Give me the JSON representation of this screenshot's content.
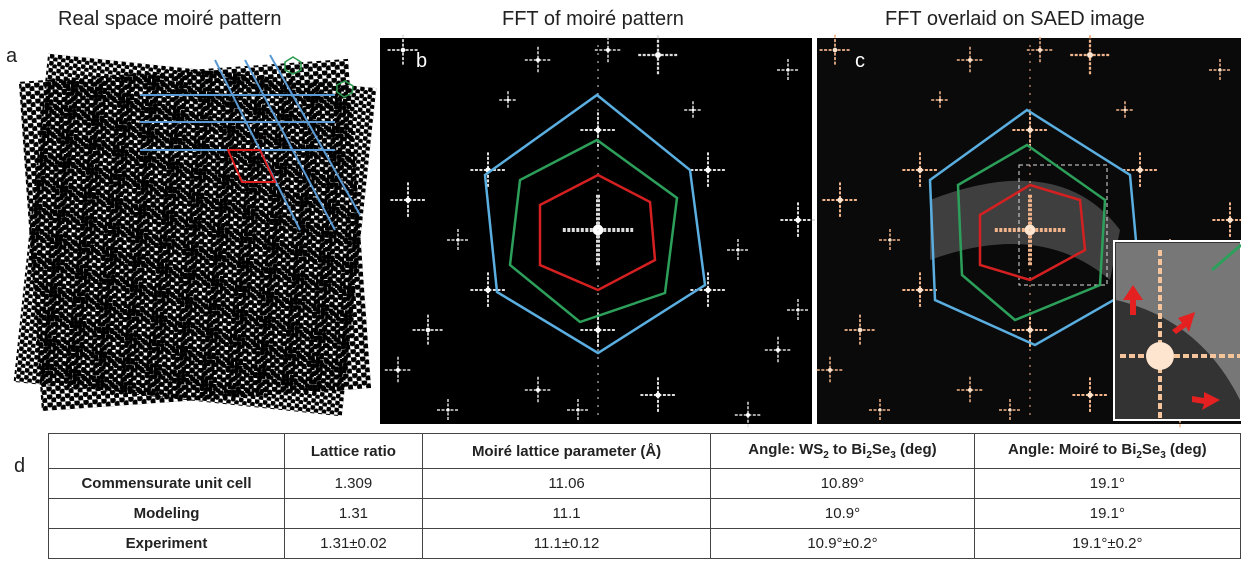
{
  "panels": {
    "a": {
      "title": "Real space moiré pattern",
      "label": "a"
    },
    "b": {
      "title": "FFT of moiré pattern",
      "label": "b"
    },
    "c": {
      "title": "FFT overlaid on SAED image",
      "label": "c"
    },
    "d": {
      "label": "d"
    }
  },
  "table": {
    "header": [
      [
        ""
      ],
      [
        "Lattice ratio"
      ],
      [
        "Moiré lattice parameter (Å)"
      ],
      [
        "Angle: WS",
        "2",
        " to Bi",
        "2",
        "Se",
        "3",
        " (deg)"
      ],
      [
        "Angle: Moiré to Bi",
        "2",
        "Se",
        "3",
        " (deg)"
      ]
    ],
    "rows": [
      [
        "Commensurate unit cell",
        "1.309",
        "11.06",
        "10.89°",
        "19.1°"
      ],
      [
        "Modeling",
        "1.31",
        "11.1",
        "10.9°",
        "19.1°"
      ],
      [
        "Experiment",
        "1.31±0.02",
        "11.1±0.12",
        "10.9°±0.2°",
        "19.1°±0.2°"
      ]
    ]
  }
}
